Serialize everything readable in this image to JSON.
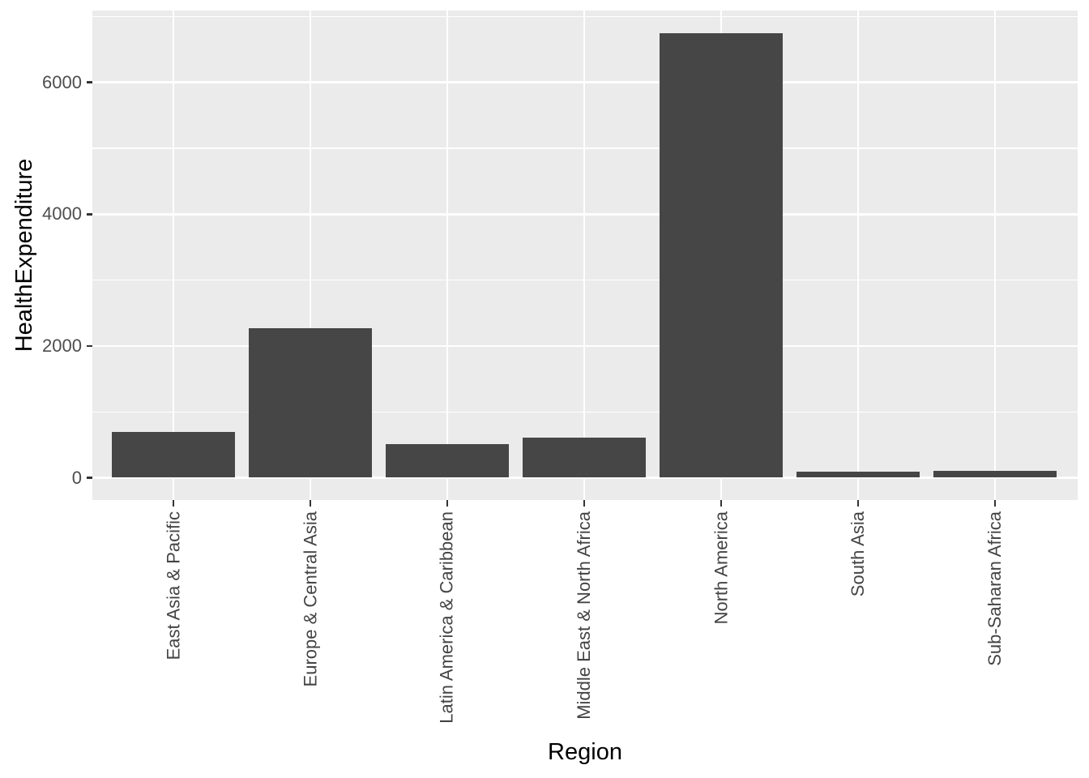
{
  "chart_data": {
    "type": "bar",
    "title": "",
    "xlabel": "Region",
    "ylabel": "HealthExpenditure",
    "categories": [
      "East Asia & Pacific",
      "Europe & Central Asia",
      "Latin America & Caribbean",
      "Middle East & North Africa",
      "North America",
      "South Asia",
      "Sub-Saharan Africa"
    ],
    "values": [
      690,
      2270,
      510,
      615,
      6745,
      95,
      105
    ],
    "y_tick_labels": [
      "0",
      "2000",
      "4000",
      "6000"
    ],
    "y_ticks": [
      0,
      2000,
      4000,
      6000
    ],
    "y_minor_gridlines": [
      1000,
      3000,
      5000,
      7000
    ],
    "ylim": [
      -340,
      7090
    ],
    "grid": "white major and minor horizontal gridlines, white vertical gridline at each category center, on grey panel",
    "legend_position": "none",
    "colors": {
      "bar_fill": "#464646",
      "panel_background": "#EBEBEB",
      "gridline": "#FFFFFF",
      "tick_label": "#4D4D4D",
      "axis_title": "#000000",
      "tick_mark": "#333333",
      "figure_background": "#FFFFFF"
    }
  }
}
